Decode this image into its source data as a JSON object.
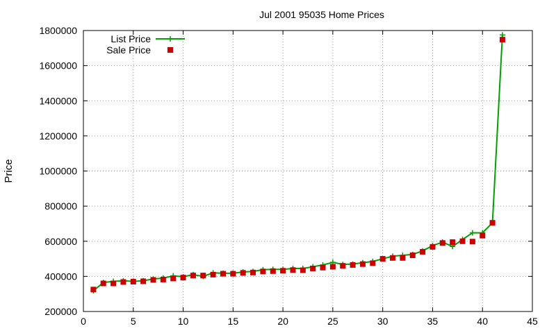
{
  "chart_data": {
    "type": "line",
    "title": "Jul 2001 95035 Home Prices",
    "xlabel": "",
    "ylabel": "Price",
    "xlim": [
      0,
      45
    ],
    "ylim": [
      200000,
      1800000
    ],
    "x_ticks": [
      "0",
      "5",
      "10",
      "15",
      "20",
      "25",
      "30",
      "35",
      "40",
      "45"
    ],
    "y_ticks": [
      "200000",
      "400000",
      "600000",
      "800000",
      "1000000",
      "1200000",
      "1400000",
      "1600000",
      "1800000"
    ],
    "grid": true,
    "legend_position": "top-left",
    "x": [
      1,
      2,
      3,
      4,
      5,
      6,
      7,
      8,
      9,
      10,
      11,
      12,
      13,
      14,
      15,
      16,
      17,
      18,
      19,
      20,
      21,
      22,
      23,
      24,
      25,
      26,
      27,
      28,
      29,
      30,
      31,
      32,
      33,
      34,
      35,
      36,
      37,
      38,
      39,
      40,
      41,
      42
    ],
    "series": [
      {
        "name": "List Price",
        "style": "line-plus",
        "color": "#00a000",
        "values": [
          318000,
          365000,
          372000,
          375000,
          372000,
          375000,
          385000,
          390000,
          403000,
          398000,
          410000,
          400000,
          420000,
          418000,
          418000,
          425000,
          428000,
          438000,
          440000,
          440000,
          445000,
          445000,
          455000,
          465000,
          480000,
          468000,
          470000,
          478000,
          485000,
          500000,
          515000,
          520000,
          525000,
          545000,
          575000,
          595000,
          570000,
          610000,
          648000,
          648000,
          705000,
          1775000
        ]
      },
      {
        "name": "Sale Price",
        "style": "square",
        "color": "#cc0000",
        "values": [
          325000,
          360000,
          360000,
          368000,
          370000,
          372000,
          380000,
          382000,
          388000,
          393000,
          405000,
          405000,
          410000,
          415000,
          415000,
          420000,
          422000,
          428000,
          430000,
          432000,
          436000,
          435000,
          445000,
          450000,
          455000,
          460000,
          465000,
          470000,
          475000,
          500000,
          505000,
          505000,
          520000,
          540000,
          568000,
          590000,
          595000,
          600000,
          598000,
          632000,
          705000,
          1748000
        ]
      }
    ]
  }
}
